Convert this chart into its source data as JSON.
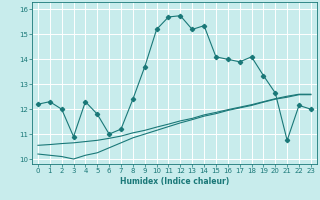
{
  "title": "",
  "xlabel": "Humidex (Indice chaleur)",
  "ylabel": "",
  "background_color": "#c8ecec",
  "grid_color": "#ffffff",
  "line_color": "#1a7878",
  "xlim": [
    -0.5,
    23.5
  ],
  "ylim": [
    9.8,
    16.3
  ],
  "xticks": [
    0,
    1,
    2,
    3,
    4,
    5,
    6,
    7,
    8,
    9,
    10,
    11,
    12,
    13,
    14,
    15,
    16,
    17,
    18,
    19,
    20,
    21,
    22,
    23
  ],
  "yticks": [
    10,
    11,
    12,
    13,
    14,
    15,
    16
  ],
  "series1_x": [
    0,
    1,
    2,
    3,
    4,
    5,
    6,
    7,
    8,
    9,
    10,
    11,
    12,
    13,
    14,
    15,
    16,
    17,
    18,
    19,
    20,
    21,
    22,
    23
  ],
  "series1_y": [
    12.2,
    12.3,
    12.0,
    10.9,
    12.3,
    11.8,
    11.0,
    11.2,
    12.4,
    13.7,
    15.2,
    15.7,
    15.75,
    15.2,
    15.35,
    14.1,
    14.0,
    13.9,
    14.1,
    13.35,
    12.65,
    10.75,
    12.15,
    12.0
  ],
  "series2_x": [
    0,
    1,
    2,
    3,
    4,
    5,
    6,
    7,
    8,
    9,
    10,
    11,
    12,
    13,
    14,
    15,
    16,
    17,
    18,
    19,
    20,
    21,
    22,
    23
  ],
  "series2_y": [
    10.2,
    10.15,
    10.1,
    10.0,
    10.15,
    10.25,
    10.45,
    10.65,
    10.85,
    11.0,
    11.15,
    11.3,
    11.45,
    11.58,
    11.72,
    11.82,
    11.95,
    12.05,
    12.15,
    12.28,
    12.4,
    12.48,
    12.58,
    12.58
  ],
  "series3_x": [
    0,
    1,
    2,
    3,
    4,
    5,
    6,
    7,
    8,
    9,
    10,
    11,
    12,
    13,
    14,
    15,
    16,
    17,
    18,
    19,
    20,
    21,
    22,
    23
  ],
  "series3_y": [
    10.55,
    10.58,
    10.62,
    10.65,
    10.7,
    10.75,
    10.83,
    10.92,
    11.05,
    11.15,
    11.28,
    11.4,
    11.53,
    11.63,
    11.77,
    11.87,
    11.98,
    12.08,
    12.18,
    12.3,
    12.42,
    12.52,
    12.6,
    12.6
  ]
}
